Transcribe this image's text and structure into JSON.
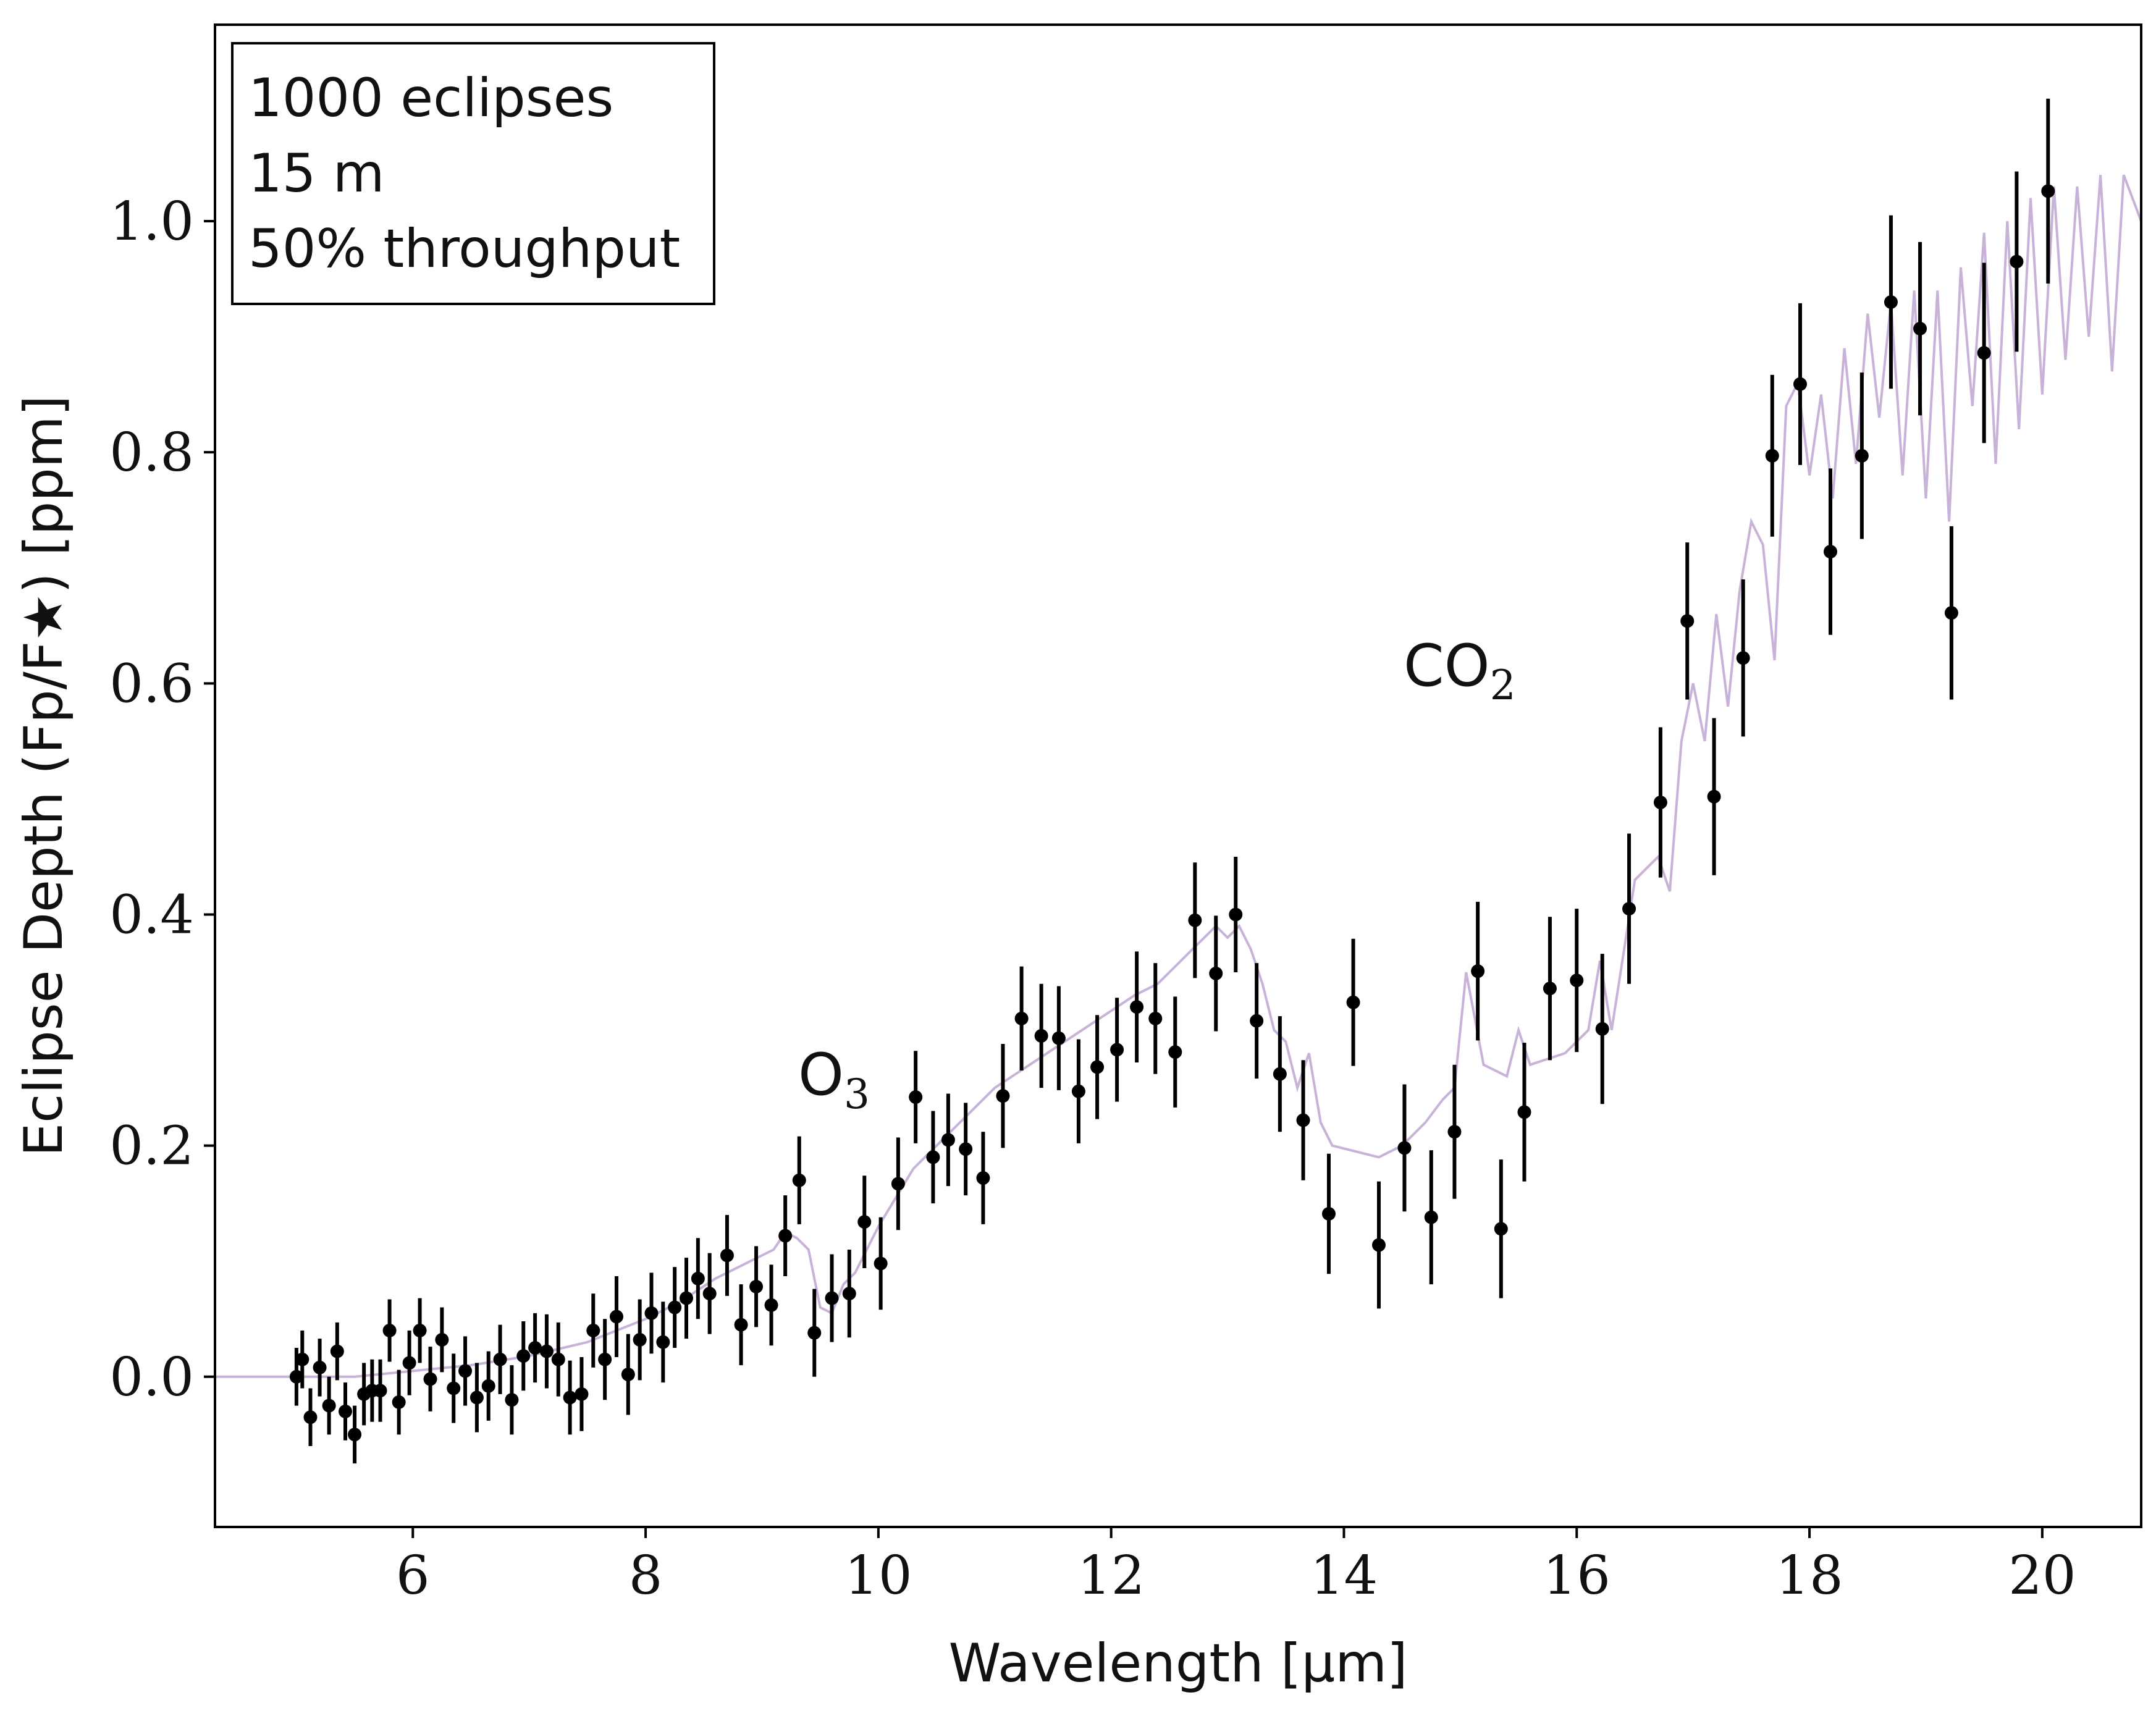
{
  "chart_data": {
    "type": "scatter",
    "xlabel": "Wavelength [μm]",
    "ylabel": "Eclipse Depth (Fp/F★) [ppm]",
    "xlim": [
      4.3,
      20.85
    ],
    "ylim": [
      -0.13,
      1.17
    ],
    "x_ticks": [
      6,
      8,
      10,
      12,
      14,
      16,
      18,
      20
    ],
    "y_ticks": [
      0.0,
      0.2,
      0.4,
      0.6,
      0.8,
      1.0
    ],
    "x_tick_labels": [
      "6",
      "8",
      "10",
      "12",
      "14",
      "16",
      "18",
      "20"
    ],
    "y_tick_labels": [
      "0.0",
      "0.2",
      "0.4",
      "0.6",
      "0.8",
      "1.0"
    ],
    "legend_lines": [
      "1000 eclipses",
      "15 m",
      "50% throughput"
    ],
    "legend_position": "top-left",
    "annotations": [
      {
        "text": "O",
        "sub": "3",
        "x": 9.3,
        "y": 0.25
      },
      {
        "text": "CO",
        "sub": "2",
        "x": 14.5,
        "y": 0.6
      }
    ],
    "grid": false,
    "colors": {
      "model": "#c8b2d8",
      "points": "#000000",
      "axes": "#000000"
    },
    "series": [
      {
        "kind": "model_spectrum",
        "x": [
          4.3,
          5.0,
          5.5,
          6.0,
          6.5,
          7.0,
          7.5,
          8.0,
          8.3,
          8.6,
          8.9,
          9.1,
          9.2,
          9.3,
          9.4,
          9.5,
          9.6,
          9.7,
          9.8,
          10.0,
          10.3,
          10.6,
          11.0,
          11.3,
          11.6,
          11.9,
          12.2,
          12.4,
          12.5,
          12.6,
          12.7,
          12.8,
          12.9,
          13.0,
          13.1,
          13.2,
          13.3,
          13.4,
          13.5,
          13.6,
          13.7,
          13.8,
          13.9,
          14.1,
          14.3,
          14.5,
          14.7,
          14.85,
          14.95,
          15.05,
          15.2,
          15.4,
          15.5,
          15.6,
          15.9,
          16.1,
          16.2,
          16.3,
          16.5,
          16.7,
          16.8,
          16.9,
          17.0,
          17.1,
          17.2,
          17.3,
          17.4,
          17.5,
          17.6,
          17.7,
          17.8,
          17.9,
          18.0,
          18.1,
          18.2,
          18.3,
          18.4,
          18.5,
          18.6,
          18.7,
          18.8,
          18.9,
          19.0,
          19.1,
          19.2,
          19.3,
          19.4,
          19.5,
          19.6,
          19.7,
          19.8,
          19.9,
          20.0,
          20.1,
          20.2,
          20.3,
          20.4,
          20.5,
          20.6,
          20.7,
          20.85
        ],
        "y": [
          0.0,
          0.0,
          0.0,
          0.005,
          0.01,
          0.018,
          0.03,
          0.05,
          0.065,
          0.085,
          0.1,
          0.11,
          0.125,
          0.12,
          0.11,
          0.06,
          0.055,
          0.08,
          0.09,
          0.13,
          0.18,
          0.21,
          0.25,
          0.27,
          0.29,
          0.31,
          0.33,
          0.34,
          0.35,
          0.36,
          0.37,
          0.38,
          0.39,
          0.38,
          0.39,
          0.37,
          0.34,
          0.3,
          0.29,
          0.25,
          0.28,
          0.22,
          0.2,
          0.195,
          0.19,
          0.2,
          0.22,
          0.24,
          0.25,
          0.35,
          0.27,
          0.26,
          0.3,
          0.27,
          0.28,
          0.3,
          0.36,
          0.3,
          0.43,
          0.45,
          0.42,
          0.55,
          0.6,
          0.55,
          0.66,
          0.58,
          0.68,
          0.74,
          0.72,
          0.62,
          0.84,
          0.86,
          0.78,
          0.85,
          0.76,
          0.89,
          0.79,
          0.92,
          0.83,
          0.93,
          0.78,
          0.94,
          0.76,
          0.94,
          0.74,
          0.96,
          0.84,
          0.99,
          0.79,
          1.0,
          0.82,
          1.02,
          0.85,
          1.03,
          0.88,
          1.03,
          0.9,
          1.04,
          0.87,
          1.04,
          1.0
        ]
      },
      {
        "kind": "data_points",
        "x": [
          5.0,
          5.05,
          5.12,
          5.2,
          5.28,
          5.35,
          5.42,
          5.5,
          5.58,
          5.65,
          5.72,
          5.8,
          5.88,
          5.97,
          6.06,
          6.15,
          6.25,
          6.35,
          6.45,
          6.55,
          6.65,
          6.75,
          6.85,
          6.95,
          7.05,
          7.15,
          7.25,
          7.35,
          7.45,
          7.55,
          7.65,
          7.75,
          7.85,
          7.95,
          8.05,
          8.15,
          8.25,
          8.35,
          8.45,
          8.55,
          8.7,
          8.82,
          8.95,
          9.08,
          9.2,
          9.32,
          9.45,
          9.6,
          9.75,
          9.88,
          10.02,
          10.17,
          10.32,
          10.47,
          10.6,
          10.75,
          10.9,
          11.07,
          11.23,
          11.4,
          11.55,
          11.72,
          11.88,
          12.05,
          12.22,
          12.38,
          12.55,
          12.72,
          12.9,
          13.07,
          13.25,
          13.45,
          13.65,
          13.87,
          14.08,
          14.3,
          14.52,
          14.75,
          14.95,
          15.15,
          15.35,
          15.55,
          15.77,
          16.0,
          16.22,
          16.45,
          16.72,
          16.95,
          17.18,
          17.43,
          17.68,
          17.92,
          18.18,
          18.45,
          18.7,
          18.95,
          19.22,
          19.5,
          19.78,
          20.05
        ],
        "y": [
          0.0,
          0.015,
          -0.035,
          0.008,
          -0.025,
          0.022,
          -0.03,
          -0.05,
          -0.015,
          -0.012,
          -0.012,
          0.04,
          -0.022,
          0.012,
          0.04,
          -0.002,
          0.032,
          -0.01,
          0.005,
          -0.018,
          -0.008,
          0.015,
          -0.02,
          0.018,
          0.025,
          0.022,
          0.015,
          -0.018,
          -0.015,
          0.04,
          0.015,
          0.052,
          0.002,
          0.032,
          0.055,
          0.03,
          0.06,
          0.068,
          0.085,
          0.072,
          0.105,
          0.045,
          0.078,
          0.062,
          0.122,
          0.17,
          0.038,
          0.068,
          0.072,
          0.134,
          0.098,
          0.167,
          0.242,
          0.19,
          0.205,
          0.197,
          0.172,
          0.243,
          0.31,
          0.295,
          0.293,
          0.247,
          0.268,
          0.283,
          0.32,
          0.31,
          0.281,
          0.395,
          0.349,
          0.4,
          0.308,
          0.262,
          0.222,
          0.141,
          0.324,
          0.114,
          0.198,
          0.138,
          0.212,
          0.351,
          0.128,
          0.229,
          0.336,
          0.343,
          0.301,
          0.405,
          0.497,
          0.654,
          0.502,
          0.622,
          0.797,
          0.859,
          0.714,
          0.797,
          0.93,
          0.907,
          0.661,
          0.886,
          0.965,
          1.026
        ],
        "err": [
          0.025,
          0.025,
          0.025,
          0.025,
          0.025,
          0.025,
          0.025,
          0.025,
          0.027,
          0.027,
          0.027,
          0.027,
          0.028,
          0.028,
          0.028,
          0.028,
          0.028,
          0.03,
          0.03,
          0.03,
          0.03,
          0.03,
          0.03,
          0.03,
          0.03,
          0.032,
          0.032,
          0.032,
          0.032,
          0.032,
          0.035,
          0.035,
          0.035,
          0.035,
          0.035,
          0.035,
          0.035,
          0.035,
          0.035,
          0.035,
          0.035,
          0.035,
          0.035,
          0.035,
          0.035,
          0.038,
          0.038,
          0.038,
          0.038,
          0.04,
          0.04,
          0.04,
          0.04,
          0.04,
          0.04,
          0.04,
          0.04,
          0.045,
          0.045,
          0.045,
          0.045,
          0.045,
          0.045,
          0.045,
          0.048,
          0.048,
          0.048,
          0.05,
          0.05,
          0.05,
          0.05,
          0.05,
          0.052,
          0.052,
          0.055,
          0.055,
          0.055,
          0.058,
          0.058,
          0.06,
          0.06,
          0.06,
          0.062,
          0.062,
          0.065,
          0.065,
          0.065,
          0.068,
          0.068,
          0.068,
          0.07,
          0.07,
          0.072,
          0.072,
          0.075,
          0.075,
          0.075,
          0.078,
          0.078,
          0.08
        ]
      }
    ]
  }
}
